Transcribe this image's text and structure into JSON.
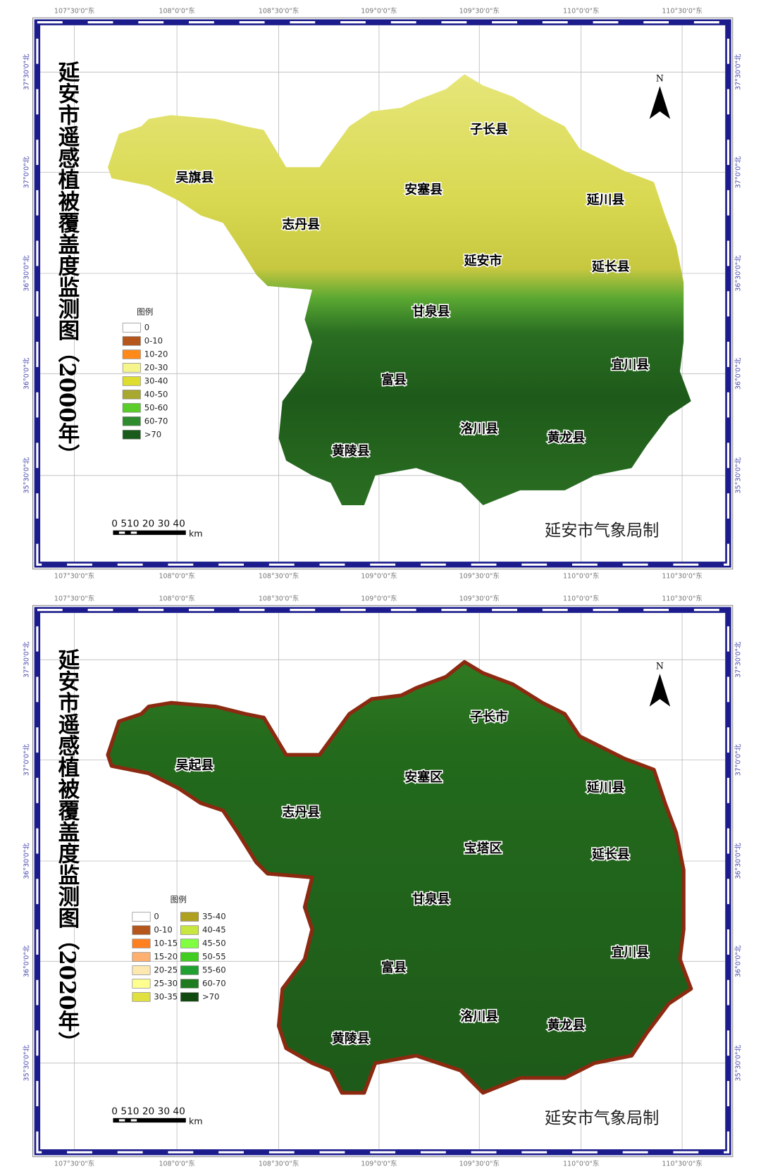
{
  "lon_labels": [
    "107°30'0\"东",
    "108°0'0\"东",
    "108°30'0\"东",
    "109°0'0\"东",
    "109°30'0\"东",
    "110°0'0\"东",
    "110°30'0\"东"
  ],
  "lat_labels": [
    "37°30'0\"北",
    "37°0'0\"北",
    "36°30'0\"北",
    "36°0'0\"北",
    "35°30'0\"北"
  ],
  "maps": [
    {
      "title": "延安市遥感植被覆盖度监测图（2000年）",
      "north": "N",
      "legend_title": "图例",
      "legend": [
        {
          "label": "0",
          "color": "#ffffff"
        },
        {
          "label": "0-10",
          "color": "#b5561d"
        },
        {
          "label": "10-20",
          "color": "#ff8a1a"
        },
        {
          "label": "20-30",
          "color": "#f5f58c"
        },
        {
          "label": "30-40",
          "color": "#dede30"
        },
        {
          "label": "40-50",
          "color": "#a8a830"
        },
        {
          "label": "50-60",
          "color": "#5acd2a"
        },
        {
          "label": "60-70",
          "color": "#2e8b2e"
        },
        {
          "label": ">70",
          "color": "#1a5a1a"
        }
      ],
      "counties": [
        "子长县",
        "吴旗县",
        "安塞县",
        "延川县",
        "志丹县",
        "延安市",
        "延长县",
        "甘泉县",
        "宜川县",
        "富县",
        "洛川县",
        "黄龙县",
        "黄陵县"
      ],
      "scale_labels": "0 510 20 30 40",
      "scale_unit": "km",
      "credit": "延安市气象局制"
    },
    {
      "title": "延安市遥感植被覆盖度监测图（2020年）",
      "north": "N",
      "legend_title": "图例",
      "legend": [
        {
          "label": "0",
          "color": "#ffffff"
        },
        {
          "label": "0-10",
          "color": "#b5561d"
        },
        {
          "label": "10-15",
          "color": "#ff8020"
        },
        {
          "label": "15-20",
          "color": "#ffb070"
        },
        {
          "label": "20-25",
          "color": "#fde8b0"
        },
        {
          "label": "25-30",
          "color": "#ffff90"
        },
        {
          "label": "30-35",
          "color": "#e0e040"
        },
        {
          "label": "35-40",
          "color": "#b0a020"
        },
        {
          "label": "40-45",
          "color": "#c8e640"
        },
        {
          "label": "45-50",
          "color": "#80ff40"
        },
        {
          "label": "50-55",
          "color": "#40cc20"
        },
        {
          "label": "55-60",
          "color": "#20a030"
        },
        {
          "label": "60-70",
          "color": "#207a20"
        },
        {
          "label": ">70",
          "color": "#104a10"
        }
      ],
      "counties": [
        "子长市",
        "吴起县",
        "安塞区",
        "延川县",
        "志丹县",
        "宝塔区",
        "延长县",
        "甘泉县",
        "宜川县",
        "富县",
        "洛川县",
        "黄龙县",
        "黄陵县"
      ],
      "scale_labels": "0 510 20 30 40",
      "scale_unit": "km",
      "credit": "延安市气象局制"
    }
  ]
}
